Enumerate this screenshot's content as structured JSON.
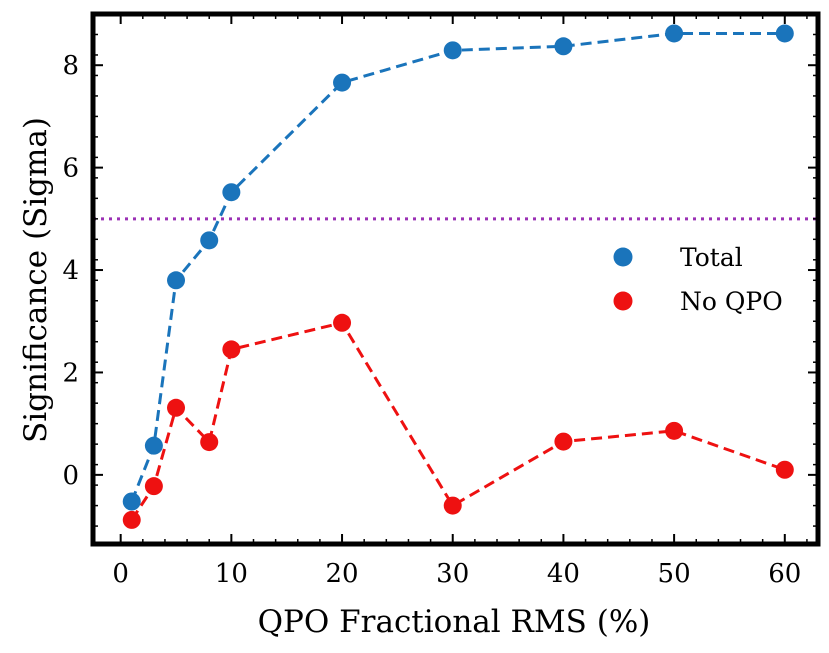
{
  "chart_data": {
    "type": "line",
    "title": "",
    "xlabel": "QPO Fractional RMS (%)",
    "ylabel": "Significance (Sigma)",
    "xlim": [
      -2.5,
      63
    ],
    "ylim": [
      -1.35,
      9.0
    ],
    "xticks": [
      0,
      10,
      20,
      30,
      40,
      50,
      60
    ],
    "yticks": [
      0,
      2,
      4,
      6,
      8
    ],
    "grid": false,
    "threshold": {
      "y": 5,
      "color": "#9b30b5",
      "style": "dotted"
    },
    "legend_position": "right",
    "series": [
      {
        "name": "Total",
        "color": "#1a74bb",
        "x": [
          1,
          3,
          5,
          8,
          10,
          20,
          30,
          40,
          50,
          60
        ],
        "y": [
          -0.52,
          0.57,
          3.8,
          4.58,
          5.52,
          7.66,
          8.29,
          8.37,
          8.62,
          8.62
        ]
      },
      {
        "name": "No QPO",
        "color": "#ee1111",
        "x": [
          1,
          3,
          5,
          8,
          10,
          20,
          30,
          40,
          50,
          60
        ],
        "y": [
          -0.88,
          -0.22,
          1.31,
          0.64,
          2.45,
          2.97,
          -0.6,
          0.65,
          0.86,
          0.1
        ]
      }
    ]
  }
}
